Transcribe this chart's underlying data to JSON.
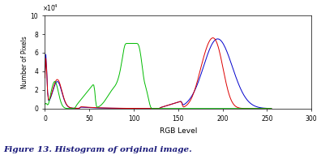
{
  "title": "Figure 13. Histogram of original image.",
  "xlabel": "RGB Level",
  "ylabel": "Number of Pixels",
  "xlim": [
    0,
    300
  ],
  "ylim": [
    0,
    100000
  ],
  "xticks": [
    0,
    50,
    100,
    150,
    200,
    250,
    300
  ],
  "yticks": [
    0,
    20000,
    40000,
    60000,
    80000,
    100000
  ],
  "ytick_labels": [
    "0",
    "2",
    "4",
    "6",
    "8",
    "10"
  ],
  "sci_label": "x 10^4",
  "background_color": "#ffffff",
  "line_colors": {
    "blue": "#0000cc",
    "red": "#dd0000",
    "green": "#00bb00"
  },
  "caption_color": "#1a1a7a",
  "linewidth": 0.7
}
